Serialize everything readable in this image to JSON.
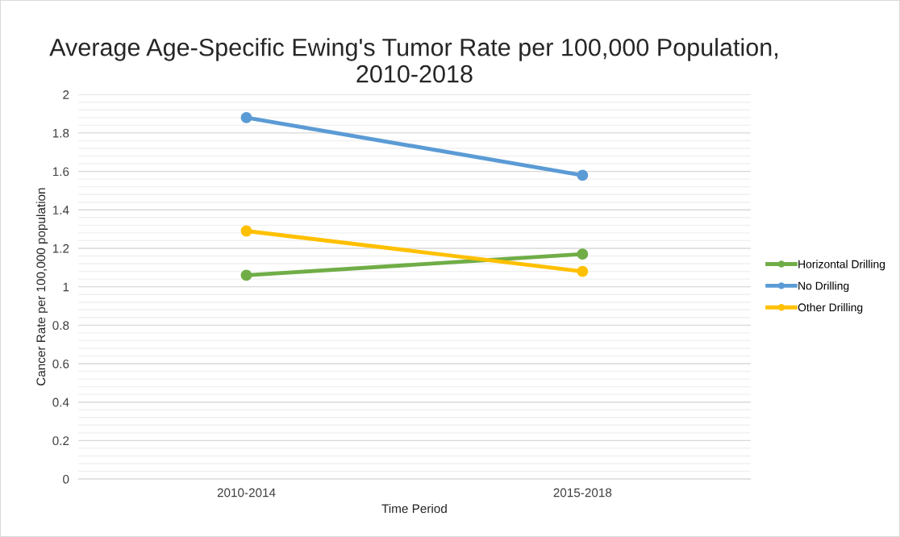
{
  "chart_data": {
    "type": "line",
    "title": "Average Age-Specific Ewing's Tumor Rate per 100,000 Population, 2010-2018",
    "xlabel": "Time Period",
    "ylabel": "Cancer Rate per 100,000 population",
    "categories": [
      "2010-2014",
      "2015-2018"
    ],
    "series": [
      {
        "name": "Horizontal Drilling",
        "color": "#70ad47",
        "values": [
          1.06,
          1.17
        ]
      },
      {
        "name": "No Drilling",
        "color": "#5b9bd5",
        "values": [
          1.88,
          1.58
        ]
      },
      {
        "name": "Other Drilling",
        "color": "#ffc000",
        "values": [
          1.29,
          1.08
        ]
      }
    ],
    "ylim": [
      0,
      2
    ],
    "yticks": [
      0,
      0.2,
      0.4,
      0.6,
      0.8,
      1,
      1.2,
      1.4,
      1.6,
      1.8,
      2
    ],
    "grid": "y",
    "legend": "right",
    "marker": "circle",
    "line_style": "solid"
  }
}
